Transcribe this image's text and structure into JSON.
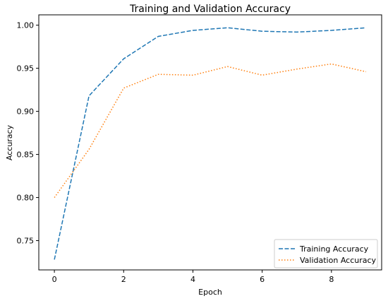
{
  "chart_data": {
    "type": "line",
    "title": "Training and Validation Accuracy",
    "xlabel": "Epoch",
    "ylabel": "Accuracy",
    "xlim": [
      -0.45,
      9.45
    ],
    "ylim": [
      0.716,
      1.012
    ],
    "xticks": [
      0,
      2,
      4,
      6,
      8
    ],
    "yticks": [
      0.75,
      0.8,
      0.85,
      0.9,
      0.95,
      1.0
    ],
    "ytick_labels": [
      "0.75",
      "0.80",
      "0.85",
      "0.90",
      "0.95",
      "1.00"
    ],
    "grid": false,
    "legend_position": "lower-right",
    "x": [
      0,
      1,
      2,
      3,
      4,
      5,
      6,
      7,
      8,
      9
    ],
    "series": [
      {
        "name": "Training Accuracy",
        "style": "dashed",
        "color": "#1f77b4",
        "values": [
          0.728,
          0.918,
          0.961,
          0.987,
          0.994,
          0.997,
          0.993,
          0.992,
          0.994,
          0.997
        ]
      },
      {
        "name": "Validation Accuracy",
        "style": "dotted",
        "color": "#ff7f0e",
        "values": [
          0.8,
          0.856,
          0.927,
          0.943,
          0.942,
          0.952,
          0.942,
          0.949,
          0.955,
          0.946
        ]
      }
    ]
  }
}
